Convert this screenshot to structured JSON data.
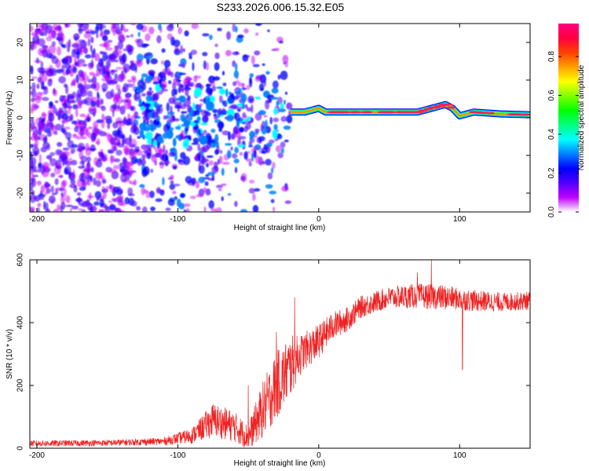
{
  "title": "S233.2026.006.15.32.E05",
  "chart_data": [
    {
      "type": "heatmap",
      "name": "spectrogram",
      "xlabel": "Height of straight line (km)",
      "ylabel": "Frequency (Hz)",
      "xlim": [
        -205,
        150
      ],
      "ylim": [
        -25,
        25
      ],
      "xticks": [
        -200,
        -100,
        0,
        100
      ],
      "xtick_labels": [
        "-200",
        "-100",
        "0",
        "100"
      ],
      "yticks": [
        -20,
        -10,
        0,
        10,
        20
      ],
      "ytick_labels": [
        "-20",
        "-10",
        "0",
        "10",
        "20"
      ],
      "colorbar": {
        "label": "Normalized spectral amplitude",
        "range": [
          0,
          0.97
        ],
        "ticks": [
          0.0,
          0.2,
          0.4,
          0.6,
          0.8
        ],
        "tick_labels": [
          "0.0",
          "0.2",
          "0.4",
          "0.6",
          "0.8"
        ],
        "colors": [
          "#ffffff",
          "#c000ff",
          "#5000ff",
          "#0000ff",
          "#0080ff",
          "#00ffff",
          "#00ff80",
          "#00ff00",
          "#80ff00",
          "#ffff00",
          "#ffa000",
          "#ff4000",
          "#ff0040",
          "#ff0080"
        ]
      },
      "signal_line": {
        "description": "dominant narrow-band signal near 1-3 Hz",
        "x": [
          -20,
          -10,
          0,
          5,
          15,
          40,
          70,
          80,
          90,
          95,
          100,
          110,
          130,
          150
        ],
        "freq": [
          1.5,
          1.5,
          2.5,
          1.5,
          1.5,
          1.5,
          1.5,
          2.5,
          3.5,
          2.5,
          0.5,
          1.5,
          1.0,
          0.8
        ],
        "amplitude": [
          0.55,
          0.7,
          0.75,
          0.8,
          0.85,
          0.9,
          0.9,
          0.95,
          0.95,
          0.85,
          0.9,
          0.85,
          0.8,
          0.9
        ]
      },
      "noise_region": {
        "x_range": [
          -205,
          -20
        ],
        "freq_range": [
          -25,
          25
        ]
      }
    },
    {
      "type": "line",
      "name": "snr",
      "xlabel": "Height of straight line (km)",
      "ylabel": "SNR (10 * v/v)",
      "xlim": [
        -205,
        150
      ],
      "ylim": [
        0,
        600
      ],
      "xticks": [
        -200,
        -100,
        0,
        100
      ],
      "xtick_labels": [
        "-200",
        "-100",
        "0",
        "100"
      ],
      "yticks": [
        0,
        200,
        400,
        600
      ],
      "ytick_labels": [
        "0",
        "200",
        "400",
        "600"
      ],
      "color": "#ee2222",
      "envelope": {
        "x": [
          -205,
          -150,
          -110,
          -90,
          -75,
          -60,
          -50,
          -40,
          -30,
          -20,
          -15,
          -10,
          0,
          10,
          20,
          30,
          50,
          70,
          90,
          100,
          110,
          130,
          150
        ],
        "base": [
          15,
          17,
          22,
          40,
          90,
          70,
          35,
          120,
          200,
          260,
          290,
          310,
          340,
          390,
          410,
          450,
          480,
          485,
          480,
          475,
          470,
          465,
          470
        ],
        "noise": [
          10,
          10,
          12,
          25,
          55,
          50,
          40,
          90,
          110,
          100,
          70,
          60,
          55,
          45,
          40,
          35,
          35,
          40,
          40,
          35,
          35,
          30,
          30
        ]
      },
      "spikes": [
        {
          "x": -50,
          "y": 200
        },
        {
          "x": -30,
          "y": 370
        },
        {
          "x": -17,
          "y": 480
        },
        {
          "x": 70,
          "y": 560
        },
        {
          "x": 80,
          "y": 600
        },
        {
          "x": 102,
          "y": 250
        }
      ]
    }
  ]
}
